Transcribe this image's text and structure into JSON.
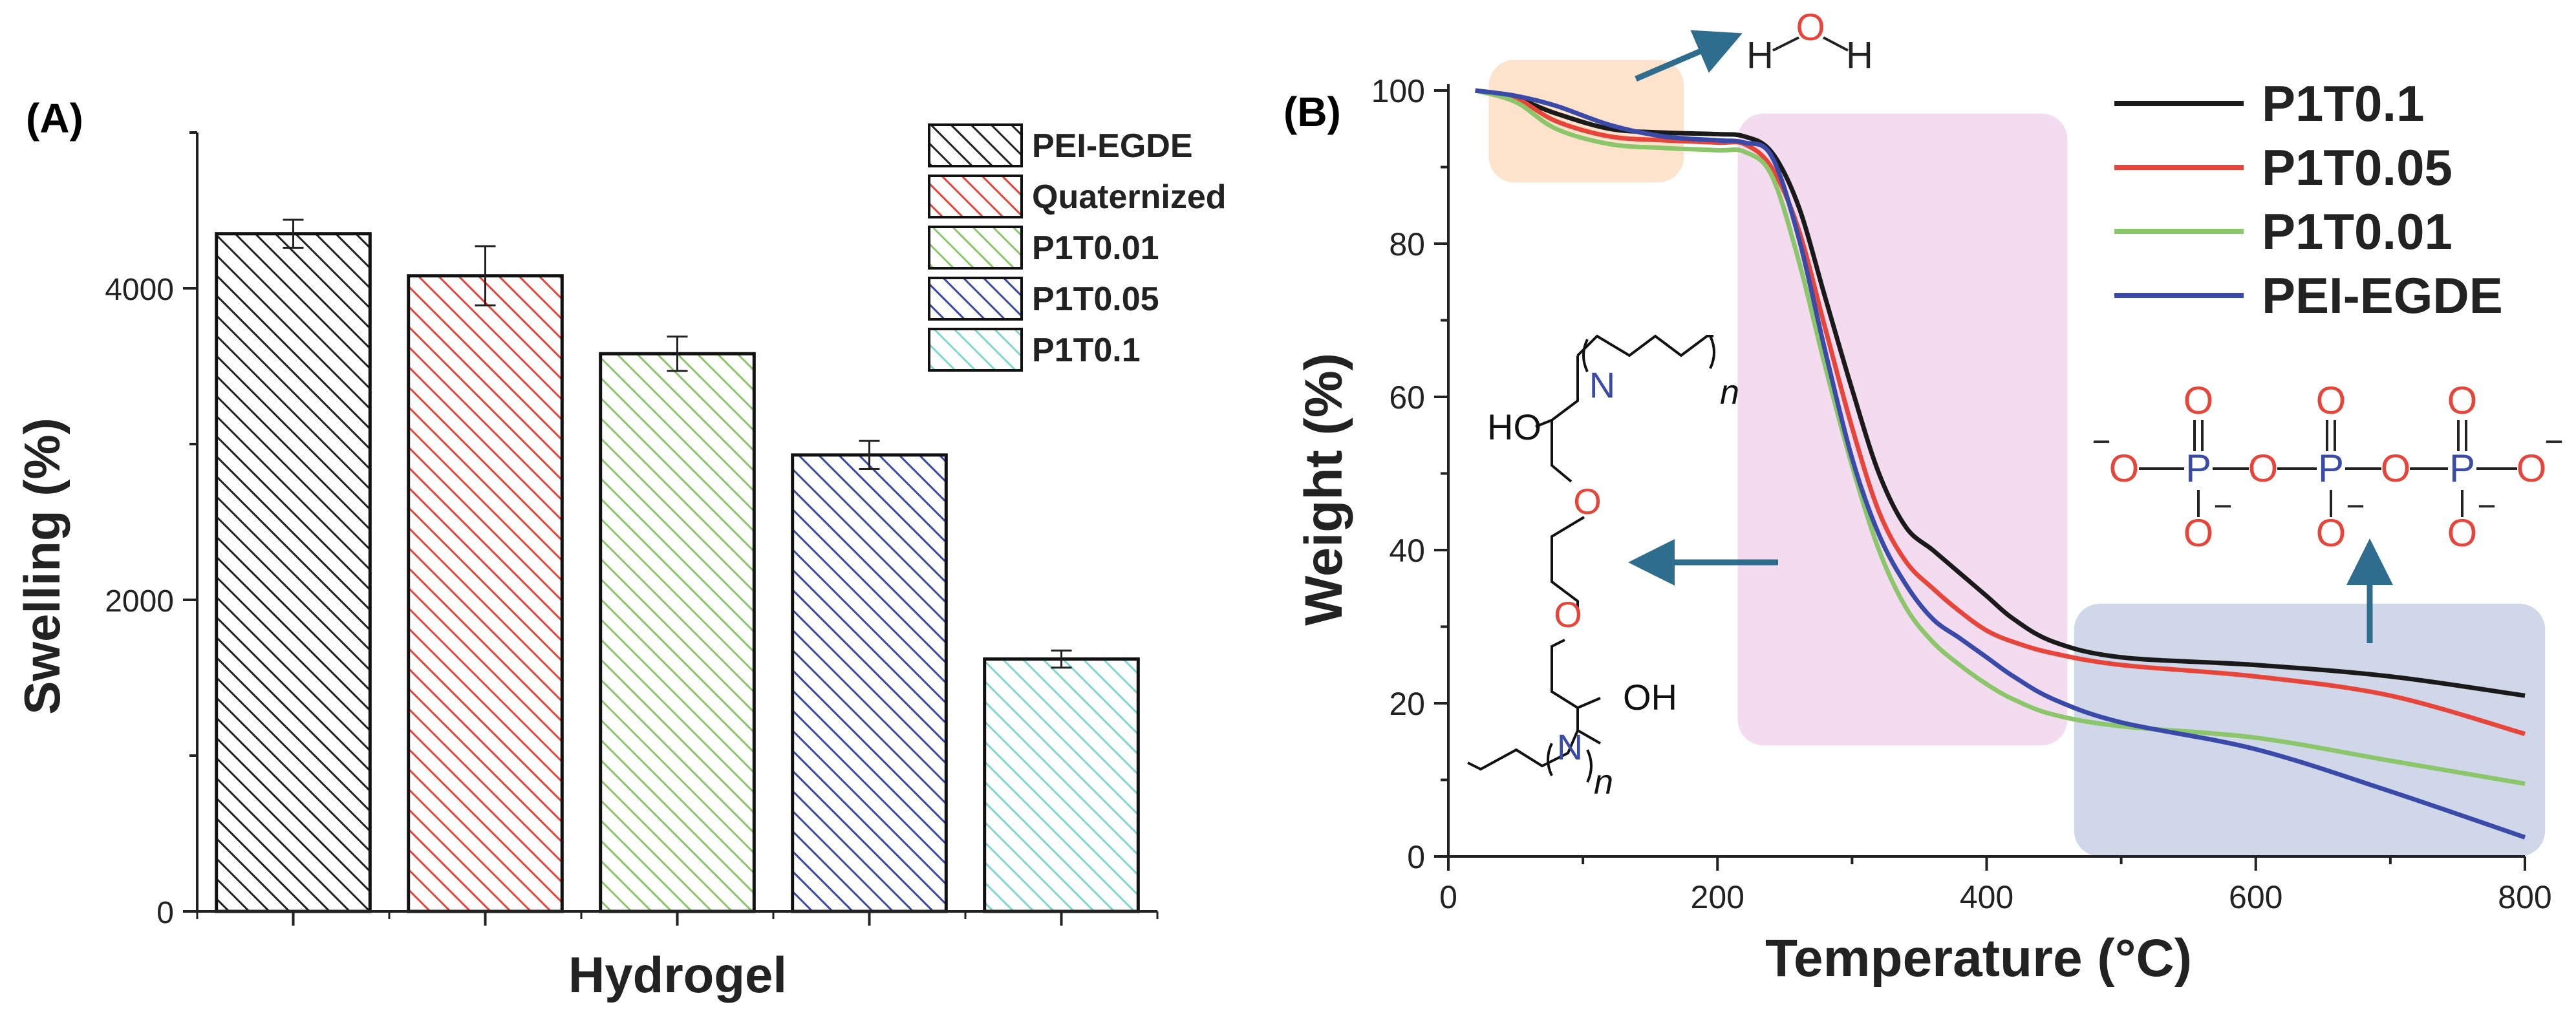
{
  "chart_data": [
    {
      "panel_label": "(A)",
      "type": "bar",
      "title": "",
      "xlabel": "Hydrogel",
      "ylabel": "Swelling (%)",
      "ylim": [
        0,
        5000
      ],
      "yticks": [
        0,
        2000,
        4000
      ],
      "grid": false,
      "legend_position": "top-right",
      "categories": [
        "PEI-EGDE",
        "Quaternized",
        "P1T0.01",
        "P1T0.05",
        "P1T0.1"
      ],
      "values": [
        4350,
        4080,
        3580,
        2930,
        1620
      ],
      "errors": [
        90,
        190,
        110,
        90,
        55
      ],
      "colors": [
        "#222222",
        "#e8453a",
        "#8cc66a",
        "#3a4aa8",
        "#7fd8d0"
      ],
      "legend": [
        "PEI-EGDE",
        "Quaternized",
        "P1T0.01",
        "P1T0.05",
        "P1T0.1"
      ]
    },
    {
      "panel_label": "(B)",
      "type": "line",
      "title": "",
      "xlabel": "Temperature (°C)",
      "ylabel": "Weight (%)",
      "xlim": [
        0,
        800
      ],
      "ylim": [
        0,
        100
      ],
      "xticks": [
        0,
        200,
        400,
        600,
        800
      ],
      "yticks": [
        0,
        20,
        40,
        60,
        80,
        100
      ],
      "grid": false,
      "legend_position": "top-right",
      "regions": [
        {
          "name": "water-loss",
          "x": [
            30,
            175
          ],
          "y": [
            88,
            104
          ],
          "color": "#fde3cc"
        },
        {
          "name": "crosslinker-degradation",
          "x": [
            215,
            460
          ],
          "y": [
            14.5,
            97
          ],
          "color": "#f3dcef"
        },
        {
          "name": "phosphate-residue",
          "x": [
            465,
            815
          ],
          "y": [
            0,
            33
          ],
          "color": "#cfd7e8"
        }
      ],
      "series": [
        {
          "name": "P1T0.1",
          "color": "#1a1a1a",
          "x": [
            20,
            50,
            80,
            120,
            160,
            200,
            220,
            240,
            260,
            280,
            300,
            320,
            340,
            360,
            380,
            400,
            420,
            450,
            500,
            600,
            700,
            800
          ],
          "y": [
            100,
            99,
            97,
            95,
            94.5,
            94.3,
            94,
            92,
            85,
            73,
            61,
            50,
            43,
            40,
            37,
            34,
            31,
            28,
            26,
            25,
            23.5,
            21
          ]
        },
        {
          "name": "P1T0.05",
          "color": "#e8453a",
          "x": [
            20,
            50,
            80,
            120,
            160,
            200,
            220,
            240,
            260,
            280,
            300,
            320,
            340,
            360,
            380,
            400,
            420,
            450,
            500,
            600,
            700,
            800
          ],
          "y": [
            100,
            99,
            96,
            94,
            93.5,
            93.2,
            93,
            90,
            82,
            69,
            56,
            45,
            38.5,
            35,
            32,
            29.5,
            28,
            26.5,
            25,
            23.5,
            21,
            16
          ]
        },
        {
          "name": "P1T0.01",
          "color": "#8cc66a",
          "x": [
            20,
            50,
            80,
            120,
            160,
            200,
            220,
            240,
            260,
            280,
            300,
            320,
            340,
            360,
            380,
            400,
            420,
            450,
            500,
            600,
            700,
            800
          ],
          "y": [
            100,
            98.5,
            95,
            93,
            92.5,
            92.2,
            92,
            89,
            78,
            64,
            51,
            40,
            32.5,
            28,
            25,
            22.5,
            20.5,
            18.5,
            17,
            15.5,
            12.5,
            9.5
          ]
        },
        {
          "name": "PEI-EGDE",
          "color": "#3a4aa8",
          "x": [
            20,
            50,
            80,
            120,
            160,
            200,
            220,
            240,
            260,
            280,
            300,
            320,
            340,
            360,
            380,
            400,
            420,
            450,
            500,
            600,
            700,
            800
          ],
          "y": [
            100,
            99.3,
            98,
            95.5,
            94,
            93.5,
            93.2,
            91.5,
            81,
            66,
            52,
            42,
            35.5,
            31,
            28.5,
            26,
            23.5,
            20.5,
            17.5,
            14,
            8.5,
            2.5
          ]
        }
      ],
      "legend": [
        "P1T0.1",
        "P1T0.05",
        "P1T0.01",
        "PEI-EGDE"
      ],
      "annotations": {
        "water": {
          "H_left": "H",
          "O": "O",
          "H_right": "H"
        },
        "pei_egde": {
          "N": "N",
          "n": "n",
          "HO": "HO",
          "OH": "OH",
          "O": "O"
        },
        "phosphate": {
          "O": "O",
          "P": "P",
          "minus": "−"
        }
      }
    }
  ]
}
